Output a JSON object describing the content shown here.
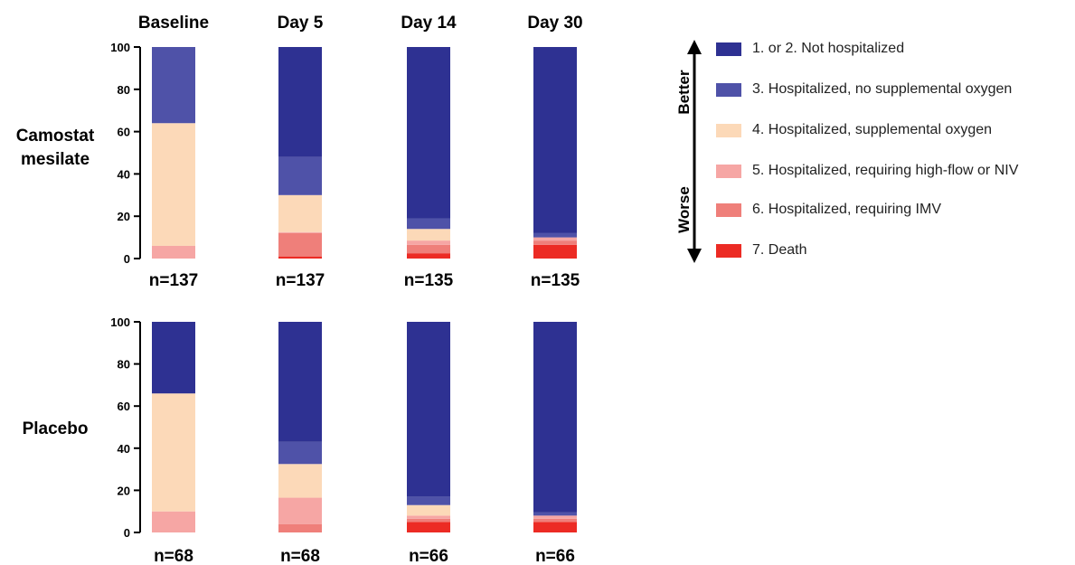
{
  "chart_data": {
    "type": "bar",
    "stacked": true,
    "ylim": [
      0,
      100
    ],
    "yticks": [
      0,
      20,
      40,
      60,
      80,
      100
    ],
    "columns": [
      "Baseline",
      "Day 5",
      "Day 14",
      "Day 30"
    ],
    "categories": [
      {
        "name": "1. or 2. Not hospitalized",
        "color": "#2e3192"
      },
      {
        "name": "3. Hospitalized, no supplemental oxygen",
        "color": "#4f52a8"
      },
      {
        "name": "4. Hospitalized, supplemental oxygen",
        "color": "#fcd9b8"
      },
      {
        "name": "5. Hospitalized, requiring high-flow or NIV",
        "color": "#f6a6a4"
      },
      {
        "name": "6. Hospitalized, requiring IMV",
        "color": "#ef7f7a"
      },
      {
        "name": "7. Death",
        "color": "#ec2b24"
      }
    ],
    "groups": [
      {
        "name": "Camostat mesilate",
        "bars": [
          {
            "column": "Baseline",
            "n": "n=137",
            "values": [
              0,
              36,
              58,
              6,
              0,
              0
            ]
          },
          {
            "column": "Day 5",
            "n": "n=137",
            "values": [
              52,
              18,
              17.5,
              0.5,
              11,
              1
            ]
          },
          {
            "column": "Day 14",
            "n": "n=135",
            "values": [
              81,
              5,
              5.5,
              2,
              4,
              2.5
            ]
          },
          {
            "column": "Day 30",
            "n": "n=135",
            "values": [
              88,
              2,
              0,
              1.5,
              2,
              6.5
            ]
          }
        ]
      },
      {
        "name": "Placebo",
        "bars": [
          {
            "column": "Baseline",
            "n": "n=68",
            "values": [
              34,
              0,
              56,
              10,
              0,
              0
            ]
          },
          {
            "column": "Day 5",
            "n": "n=68",
            "values": [
              57,
              10.5,
              16,
              12.5,
              4,
              0
            ]
          },
          {
            "column": "Day 14",
            "n": "n=66",
            "values": [
              83,
              4,
              5,
              1.5,
              1.5,
              5
            ]
          },
          {
            "column": "Day 30",
            "n": "n=66",
            "values": [
              90.5,
              1.5,
              0,
              1.5,
              1.5,
              5
            ]
          }
        ]
      }
    ],
    "direction_labels": {
      "up": "Better",
      "down": "Worse"
    },
    "legend_position": "right"
  }
}
